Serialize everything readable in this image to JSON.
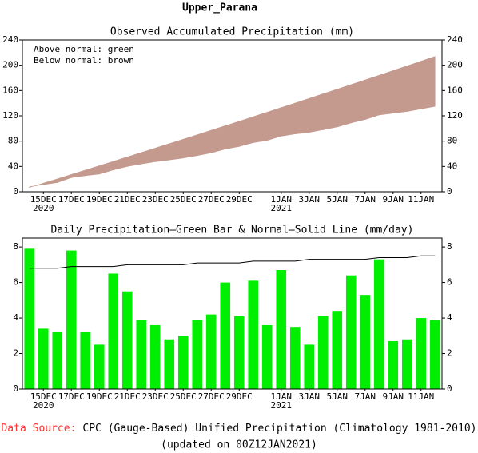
{
  "title": "Upper_Parana",
  "chart_data": [
    {
      "type": "area",
      "title": "Observed Accumulated Precipitation (mm)",
      "annotations": [
        "Above normal: green",
        "Below normal: brown"
      ],
      "categories": [
        null,
        "15DEC",
        null,
        "17DEC",
        null,
        "19DEC",
        null,
        "21DEC",
        null,
        "23DEC",
        null,
        "25DEC",
        null,
        "27DEC",
        null,
        "29DEC",
        null,
        null,
        "1JAN",
        null,
        "3JAN",
        null,
        "5JAN",
        null,
        "7JAN",
        null,
        "9JAN",
        null,
        "11JAN",
        null
      ],
      "category_years": [
        null,
        "2020",
        null,
        null,
        null,
        null,
        null,
        null,
        null,
        null,
        null,
        null,
        null,
        null,
        null,
        null,
        null,
        null,
        "2021",
        null,
        null,
        null,
        null,
        null,
        null,
        null,
        null,
        null,
        null,
        null
      ],
      "observed_values": [
        7.9,
        11.3,
        14.5,
        22.3,
        25.5,
        28.0,
        34.5,
        40.0,
        43.9,
        47.5,
        50.3,
        53.3,
        57.2,
        61.4,
        67.4,
        71.5,
        77.6,
        81.2,
        87.9,
        91.4,
        93.9,
        98.0,
        102.4,
        108.8,
        114.1,
        121.4,
        124.1,
        126.9,
        130.9,
        134.8
      ],
      "normal_values": [
        6.8,
        13.6,
        20.4,
        27.3,
        34.2,
        41.1,
        48.0,
        55.0,
        62.0,
        69.0,
        76.0,
        83.0,
        90.1,
        97.2,
        104.3,
        111.4,
        118.6,
        125.8,
        133.0,
        140.2,
        147.5,
        154.8,
        162.1,
        169.4,
        176.7,
        184.1,
        191.5,
        198.9,
        206.4,
        213.9
      ],
      "above_color": "#00ee00",
      "below_color": "#c49a8f",
      "ylim": [
        0,
        240
      ],
      "yticks": [
        0,
        40,
        80,
        120,
        160,
        200,
        240
      ],
      "y2lim": [
        0,
        240
      ],
      "y2ticks": [
        0,
        40,
        80,
        120,
        160,
        200,
        240
      ]
    },
    {
      "type": "bar",
      "title": "Daily Precipitation—Green Bar & Normal—Solid Line (mm/day)",
      "categories": [
        null,
        "15DEC",
        null,
        "17DEC",
        null,
        "19DEC",
        null,
        "21DEC",
        null,
        "23DEC",
        null,
        "25DEC",
        null,
        "27DEC",
        null,
        "29DEC",
        null,
        null,
        "1JAN",
        null,
        "3JAN",
        null,
        "5JAN",
        null,
        "7JAN",
        null,
        "9JAN",
        null,
        "11JAN",
        null
      ],
      "category_years": [
        null,
        "2020",
        null,
        null,
        null,
        null,
        null,
        null,
        null,
        null,
        null,
        null,
        null,
        null,
        null,
        null,
        null,
        null,
        "2021",
        null,
        null,
        null,
        null,
        null,
        null,
        null,
        null,
        null,
        null,
        null
      ],
      "series": [
        {
          "type": "bar",
          "color": "#00ee00",
          "values": [
            7.9,
            3.4,
            3.2,
            7.8,
            3.2,
            2.5,
            6.5,
            5.5,
            3.9,
            3.6,
            2.8,
            3.0,
            3.9,
            4.2,
            6.0,
            4.1,
            6.1,
            3.6,
            6.7,
            3.5,
            2.5,
            4.1,
            4.4,
            6.4,
            5.3,
            7.3,
            2.7,
            2.8,
            4.0,
            3.9
          ]
        },
        {
          "type": "line",
          "color": "#000000",
          "values": [
            6.8,
            6.8,
            6.8,
            6.9,
            6.9,
            6.9,
            6.9,
            7.0,
            7.0,
            7.0,
            7.0,
            7.0,
            7.1,
            7.1,
            7.1,
            7.1,
            7.2,
            7.2,
            7.2,
            7.2,
            7.3,
            7.3,
            7.3,
            7.3,
            7.3,
            7.4,
            7.4,
            7.4,
            7.5,
            7.5
          ]
        }
      ],
      "ylim": [
        0,
        8.5
      ],
      "yticks": [
        0,
        2,
        4,
        6,
        8
      ],
      "y2lim": [
        0,
        8.5
      ],
      "y2ticks": [
        0,
        2,
        4,
        6,
        8
      ]
    }
  ],
  "footer": {
    "source_label": "Data Source:",
    "source_label_color": "#ff3030",
    "source": "CPC (Gauge-Based) Unified Precipitation (Climatology 1981-2010)",
    "updated": "(updated on 00Z12JAN2021)"
  }
}
